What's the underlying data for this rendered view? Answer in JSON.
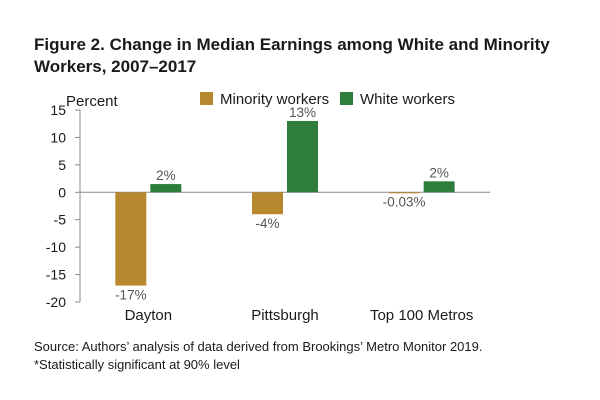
{
  "title": "Figure 2. Change in Median Earnings among White and Minority Workers, 2007–2017",
  "source_line": "Source: Authors’ analysis of data derived from Brookings’ Metro Monitor 2019.",
  "note_line": "*Statistically significant at 90% level",
  "chart_data": {
    "type": "bar",
    "title": "Figure 2. Change in Median Earnings among White and Minority Workers, 2007–2017",
    "ylabel": "Percent",
    "xlabel": "",
    "categories": [
      "Dayton",
      "Pittsburgh",
      "Top 100 Metros"
    ],
    "series": [
      {
        "name": "Minority workers",
        "values": [
          -17,
          -4,
          -0.03
        ],
        "labels": [
          "-17%",
          "-4%",
          "-0.03%"
        ],
        "color": "#b8882f"
      },
      {
        "name": "White workers",
        "values": [
          1.5,
          13,
          2
        ],
        "labels": [
          "2%",
          "13%",
          "2%"
        ],
        "color": "#2e7d3c"
      }
    ],
    "ylim": [
      -20,
      15
    ],
    "yticks": [
      15,
      10,
      5,
      0,
      -5,
      -10,
      -15,
      -20
    ],
    "grid": false,
    "legend": "top-right"
  }
}
